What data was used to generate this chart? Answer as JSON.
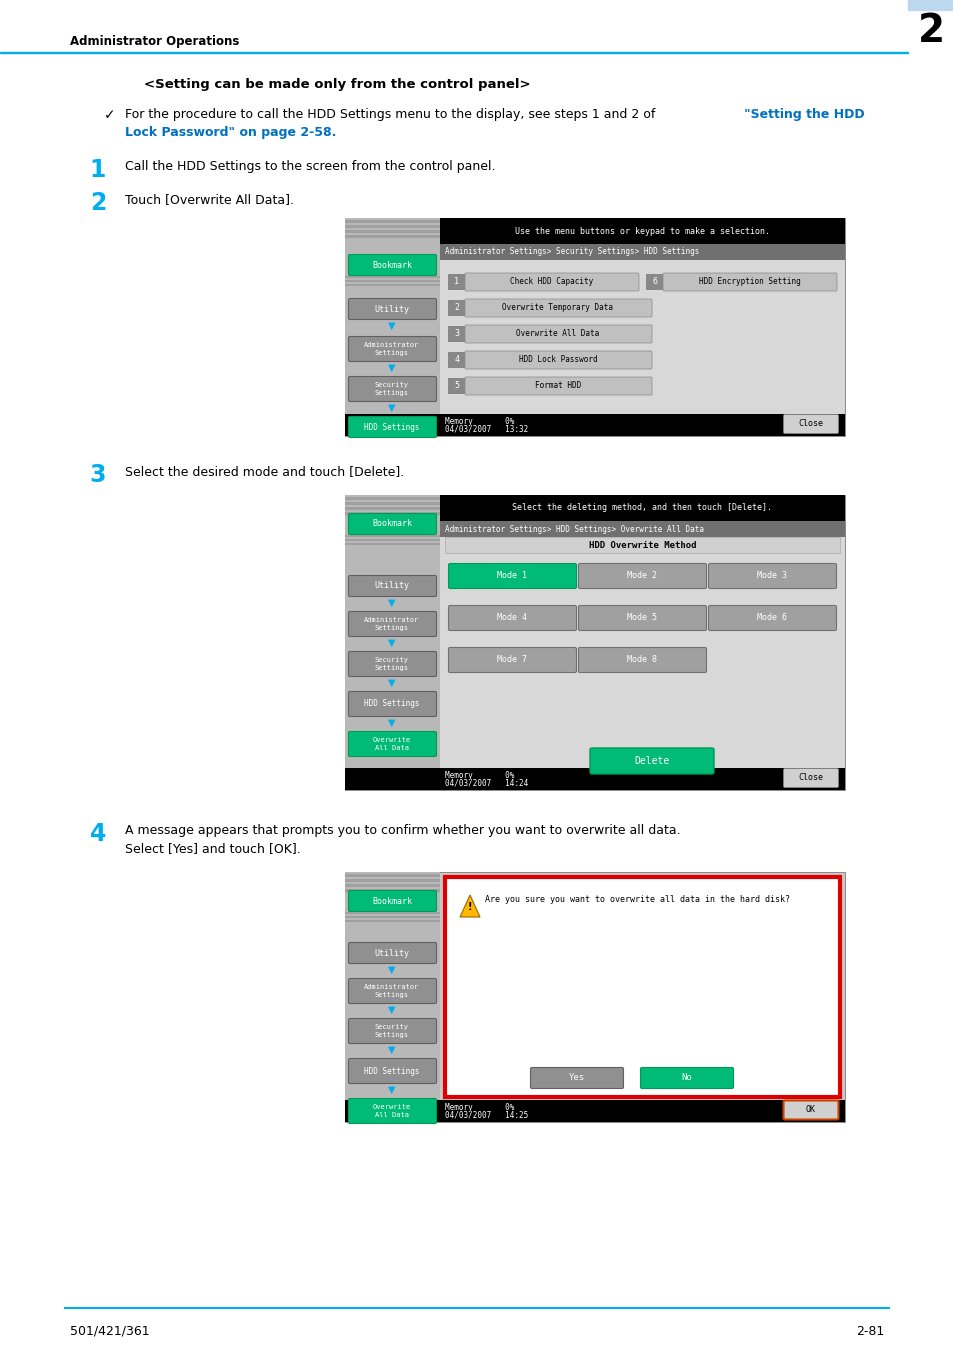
{
  "title_header": "Administrator Operations",
  "chapter_num": "2",
  "page_footer_left": "501/421/361",
  "page_footer_right": "2-81",
  "heading": "<Setting can be made only from the control panel>",
  "bullet_text": "For the procedure to call the HDD Settings menu to the display, see steps 1 and 2 of ",
  "bullet_link_line1": "\"Setting the HDD",
  "bullet_link_line2": "Lock Password\" on page 2-58.",
  "step1_num": "1",
  "step1_text": "Call the HDD Settings to the screen from the control panel.",
  "step2_num": "2",
  "step2_text": "Touch [Overwrite All Data].",
  "step3_num": "3",
  "step3_text": "Select the desired mode and touch [Delete].",
  "step4_num": "4",
  "step4_text_line1": "A message appears that prompts you to confirm whether you want to overwrite all data.",
  "step4_text_line2": "Select [Yes] and touch [OK].",
  "blue_color": "#00AEEF",
  "link_blue": "#0070C0",
  "bg_color": "#FFFFFF",
  "chapter_bg": "#BDD7EE",
  "green_btn": "#00BB77",
  "screen_gray": "#B8B8B8",
  "screen_dark_gray": "#888888",
  "screen_med_gray": "#C8C8C8",
  "screen_light_gray": "#D8D8D8"
}
